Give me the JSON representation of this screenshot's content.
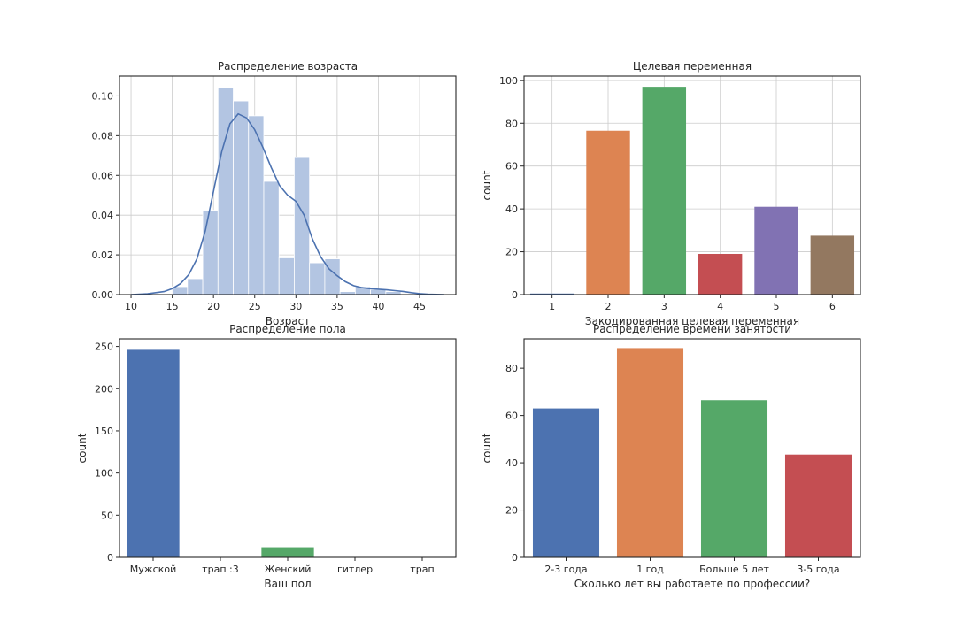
{
  "chart_data": [
    {
      "type": "histogram",
      "title": "Распределение возраста",
      "xlabel": "Возраст",
      "ylabel": "",
      "xlim": [
        8.6,
        49.4
      ],
      "ylim": [
        0,
        0.11
      ],
      "xticks": [
        10,
        15,
        20,
        25,
        30,
        35,
        40,
        45
      ],
      "yticks": [
        "0.00",
        "0.02",
        "0.04",
        "0.06",
        "0.08",
        "0.10"
      ],
      "grid": true,
      "bar_color": "#b3c5e2",
      "bin_edges": [
        15,
        16.85,
        18.7,
        20.55,
        22.4,
        24.25,
        26.1,
        27.95,
        29.8,
        31.65,
        33.5,
        35.35,
        37.2,
        39.05,
        40.9,
        42.75
      ],
      "densities": [
        0.004,
        0.008,
        0.0425,
        0.104,
        0.0975,
        0.09,
        0.057,
        0.0185,
        0.069,
        0.016,
        0.018,
        0.0015,
        0.004,
        0.0025,
        0.0015
      ],
      "kde_color": "#4c72b0",
      "kde": {
        "x": [
          10,
          12,
          14,
          15,
          16,
          17,
          18,
          19,
          20,
          21,
          22,
          23,
          24,
          25,
          26,
          27,
          28,
          29,
          30,
          31,
          32,
          33,
          34,
          35,
          36,
          37,
          38,
          39,
          40,
          41,
          42,
          43,
          44,
          45,
          46,
          47,
          48
        ],
        "y": [
          0,
          0.0004,
          0.0015,
          0.003,
          0.0055,
          0.01,
          0.018,
          0.032,
          0.052,
          0.072,
          0.086,
          0.091,
          0.089,
          0.083,
          0.074,
          0.064,
          0.055,
          0.05,
          0.047,
          0.04,
          0.028,
          0.019,
          0.013,
          0.0095,
          0.0065,
          0.0045,
          0.0035,
          0.003,
          0.0027,
          0.0024,
          0.002,
          0.0016,
          0.001,
          0.0005,
          0.0002,
          0.0001,
          0
        ]
      }
    },
    {
      "type": "bar",
      "title": "Целевая переменная",
      "xlabel": "Закодированная целевая переменная",
      "ylabel": "count",
      "ylim": [
        0,
        102
      ],
      "yticks": [
        0,
        20,
        40,
        60,
        80,
        100
      ],
      "grid": true,
      "categories": [
        "1",
        "2",
        "3",
        "4",
        "5",
        "6"
      ],
      "values": [
        0.5,
        76.5,
        97,
        19,
        41,
        27.5
      ],
      "colors": [
        "#4c72b0",
        "#dd8452",
        "#55a868",
        "#c44e52",
        "#8172b3",
        "#937860"
      ]
    },
    {
      "type": "bar",
      "title": "Распределение пола",
      "xlabel": "Ваш пол",
      "ylabel": "count",
      "ylim": [
        0,
        259
      ],
      "yticks": [
        0,
        50,
        100,
        150,
        200,
        250
      ],
      "grid": false,
      "categories": [
        "Мужской",
        "трап :3",
        "Женский",
        "гитлер",
        "трап"
      ],
      "values": [
        246,
        0,
        12,
        0,
        0
      ],
      "colors": [
        "#4c72b0",
        "#dd8452",
        "#55a868",
        "#c44e52",
        "#8172b3"
      ]
    },
    {
      "type": "bar",
      "title": "Распределение времени занятости",
      "xlabel": "Сколько лет вы работаете по профессии?",
      "ylabel": "count",
      "ylim": [
        0,
        92.4
      ],
      "yticks": [
        0,
        20,
        40,
        60,
        80
      ],
      "grid": false,
      "categories": [
        "2-3 года",
        "1 год",
        "Больше 5 лет",
        "3-5 года"
      ],
      "values": [
        63,
        88.5,
        66.5,
        43.5
      ],
      "colors": [
        "#4c72b0",
        "#dd8452",
        "#55a868",
        "#c44e52"
      ]
    }
  ]
}
